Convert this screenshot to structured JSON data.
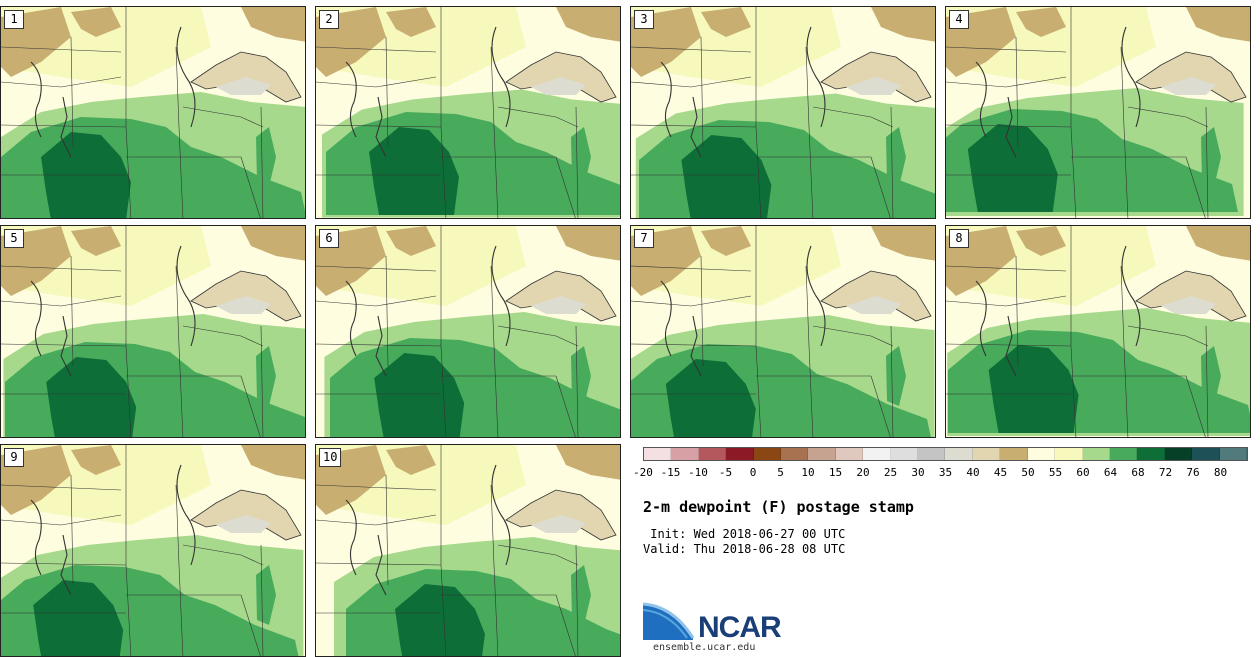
{
  "panels": [
    {
      "label": "1",
      "ew": 0,
      "ns": 0
    },
    {
      "label": "2",
      "ew": 10,
      "ns": -5
    },
    {
      "label": "3",
      "ew": 8,
      "ns": 3
    },
    {
      "label": "4",
      "ew": -14,
      "ns": -8
    },
    {
      "label": "5",
      "ew": 4,
      "ns": 6
    },
    {
      "label": "6",
      "ew": 14,
      "ns": 2
    },
    {
      "label": "7",
      "ew": -4,
      "ns": 8
    },
    {
      "label": "8",
      "ew": 2,
      "ns": -6
    },
    {
      "label": "9",
      "ew": -6,
      "ns": 10
    },
    {
      "label": "10",
      "ew": 30,
      "ns": 14
    }
  ],
  "colorbar": {
    "ticks": [
      "-20",
      "-15",
      "-10",
      "-5",
      "0",
      "5",
      "10",
      "15",
      "20",
      "25",
      "30",
      "35",
      "40",
      "45",
      "50",
      "55",
      "60",
      "64",
      "68",
      "72",
      "76",
      "80"
    ],
    "colors": [
      "#f4e0e3",
      "#d7a0a4",
      "#b5585e",
      "#8c1a24",
      "#8a4613",
      "#a87251",
      "#c6a290",
      "#e0c8be",
      "#f2f2f2",
      "#dedede",
      "#c4c4c4",
      "#dcdcd0",
      "#e2d6b0",
      "#c8ae70",
      "#fffde0",
      "#f6f8bc",
      "#a6d98c",
      "#48ab5c",
      "#0e6e38",
      "#064026",
      "#1e5058",
      "#517a7c"
    ]
  },
  "field_colors": {
    "dry_tan": "#c8ae70",
    "light_tan": "#e2d6b0",
    "grey": "#dcdcd0",
    "cream": "#fffde0",
    "pale_yellow": "#f6f8bc",
    "light_green": "#a6d98c",
    "medium_green": "#48ab5c",
    "dark_green": "#0e6e38",
    "lake_fill": "#e2d6b0",
    "boundary": "#333333"
  },
  "title": "2-m dewpoint (F) postage stamp",
  "init_line": " Init: Wed 2018-06-27 00 UTC",
  "valid_line": "Valid: Thu 2018-06-28 08 UTC",
  "logo": {
    "name": "NCAR",
    "url": "ensemble.ucar.edu"
  }
}
